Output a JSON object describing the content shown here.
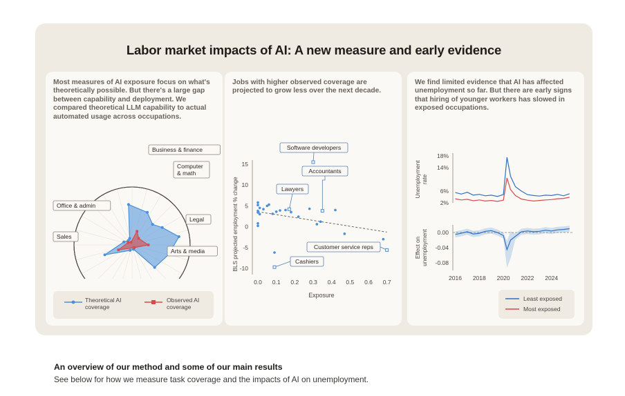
{
  "main_title": "Labor market impacts of AI: A new measure and early evidence",
  "panels": {
    "radar": {
      "description": "Most measures of AI exposure focus on what's theoretically possible. But there's a large gap between capability and deployment. We compared theoretical LLM capability to actual automated usage across occupations."
    },
    "scatter": {
      "description": "Jobs with higher observed coverage are projected to grow less over the next decade."
    },
    "unemployment": {
      "description": "We find limited evidence that AI has affected unemployment so far. But there are early signs that hiring of younger workers has slowed in exposed occupations."
    }
  },
  "footer": {
    "title": "An overview of our method and some of our main results",
    "subtitle": "See below for how we measure task coverage and the impacts of AI on unemployment."
  },
  "colors": {
    "blue": "#4a8fd8",
    "red": "#d94a4a",
    "panel_bg": "#fbf9f5",
    "outer_bg": "#efebe3"
  },
  "chart_data": [
    {
      "type": "radar",
      "r_ticks": [
        0.6,
        1.0
      ],
      "category_labels": [
        "Business & finance",
        "Computer & math",
        "Legal",
        "Arts & media",
        "Sales",
        "Office & admin"
      ],
      "series": [
        {
          "name": "Theoretical AI coverage",
          "color": "#4a8fd8",
          "points": [
            {
              "angle": -5,
              "r": 0.7
            },
            {
              "angle": 25,
              "r": 0.62
            },
            {
              "angle": 45,
              "r": 0.5
            },
            {
              "angle": 60,
              "r": 0.6
            },
            {
              "angle": 80,
              "r": 0.82
            },
            {
              "angle": 105,
              "r": 0.65
            },
            {
              "angle": 135,
              "r": 0.55
            },
            {
              "angle": 160,
              "r": 0.08
            },
            {
              "angle": 200,
              "r": 0.1
            },
            {
              "angle": 250,
              "r": 0.5
            },
            {
              "angle": 290,
              "r": 0.15
            },
            {
              "angle": 320,
              "r": 0.1
            },
            {
              "angle": 340,
              "r": 0.12
            }
          ]
        },
        {
          "name": "Observed AI coverage",
          "color": "#d94a4a",
          "points": [
            {
              "angle": 20,
              "r": 0.25
            },
            {
              "angle": 45,
              "r": 0.16
            },
            {
              "angle": 90,
              "r": 0.28
            },
            {
              "angle": 140,
              "r": 0.06
            },
            {
              "angle": 250,
              "r": 0.25
            },
            {
              "angle": 300,
              "r": 0.08
            },
            {
              "angle": 340,
              "r": 0.05
            }
          ]
        }
      ]
    },
    {
      "type": "scatter",
      "xlabel": "Exposure",
      "ylabel": "BLS projected employment % change",
      "x_ticks": [
        0.0,
        0.1,
        0.2,
        0.3,
        0.4,
        0.5,
        0.6,
        0.7
      ],
      "y_ticks": [
        15,
        10,
        5,
        0,
        -5,
        -10
      ],
      "xlim": [
        -0.03,
        0.72
      ],
      "ylim": [
        -11.5,
        16
      ],
      "points": [
        [
          0.0,
          5.8
        ],
        [
          0.0,
          5.2
        ],
        [
          0.01,
          4.5
        ],
        [
          0.0,
          3.8
        ],
        [
          0.0,
          3.4
        ],
        [
          0.01,
          3.0
        ],
        [
          0.0,
          0.8
        ],
        [
          0.0,
          0.2
        ],
        [
          0.03,
          4.2
        ],
        [
          0.05,
          5.0
        ],
        [
          0.06,
          5.3
        ],
        [
          0.08,
          3.1
        ],
        [
          0.1,
          3.6
        ],
        [
          0.12,
          3.9
        ],
        [
          0.15,
          4.0
        ],
        [
          0.18,
          3.5
        ],
        [
          0.22,
          2.4
        ],
        [
          0.28,
          4.3
        ],
        [
          0.32,
          0.6
        ],
        [
          0.34,
          1.2
        ],
        [
          0.42,
          4.0
        ],
        [
          0.47,
          -1.7
        ],
        [
          0.09,
          -6.2
        ],
        [
          0.68,
          -3.0
        ]
      ],
      "trend": [
        [
          0.0,
          3.6
        ],
        [
          0.7,
          -1.3
        ]
      ],
      "annotations": [
        {
          "label": "Software developers",
          "x": 0.3,
          "y": 15.5
        },
        {
          "label": "Accountants",
          "x": 0.35,
          "y": 3.8
        },
        {
          "label": "Lawyers",
          "x": 0.17,
          "y": 4.2
        },
        {
          "label": "Customer service reps",
          "x": 0.7,
          "y": -5.6
        },
        {
          "label": "Cashiers",
          "x": 0.09,
          "y": -9.7
        }
      ]
    },
    {
      "type": "line",
      "ylabel_top": "Unemployment rate",
      "ylabel_bottom": "Effect on unemployment",
      "x_ticks": [
        2016,
        2018,
        2020,
        2022,
        2024
      ],
      "xlim": [
        2015.8,
        2025.8
      ],
      "top_y_ticks": [
        "18%",
        "14%",
        "6%",
        "2%"
      ],
      "top_ylim": [
        2,
        18
      ],
      "bottom_y_ticks": [
        "0.00",
        "-0.04",
        "-0.08"
      ],
      "bottom_ylim": [
        -0.1,
        0.02
      ],
      "series_top": [
        {
          "name": "Least exposed",
          "color": "#2f6fc0",
          "values": [
            [
              2016,
              5.5
            ],
            [
              2016.5,
              5.0
            ],
            [
              2017,
              5.6
            ],
            [
              2017.5,
              4.6
            ],
            [
              2018,
              4.9
            ],
            [
              2018.5,
              4.4
            ],
            [
              2019,
              4.6
            ],
            [
              2019.5,
              4.2
            ],
            [
              2020,
              4.8
            ],
            [
              2020.3,
              17.5
            ],
            [
              2020.6,
              11.0
            ],
            [
              2021,
              7.5
            ],
            [
              2021.5,
              6.0
            ],
            [
              2022,
              4.8
            ],
            [
              2022.5,
              4.5
            ],
            [
              2023,
              4.3
            ],
            [
              2023.5,
              4.6
            ],
            [
              2024,
              4.5
            ],
            [
              2024.5,
              4.9
            ],
            [
              2025,
              4.4
            ],
            [
              2025.5,
              5.1
            ]
          ]
        },
        {
          "name": "Most exposed",
          "color": "#d94a4a",
          "values": [
            [
              2016,
              3.4
            ],
            [
              2016.5,
              3.0
            ],
            [
              2017,
              3.2
            ],
            [
              2017.5,
              2.7
            ],
            [
              2018,
              3.0
            ],
            [
              2018.5,
              2.6
            ],
            [
              2019,
              2.8
            ],
            [
              2019.5,
              2.5
            ],
            [
              2020,
              2.9
            ],
            [
              2020.3,
              10.5
            ],
            [
              2020.6,
              6.5
            ],
            [
              2021,
              4.5
            ],
            [
              2021.5,
              3.3
            ],
            [
              2022,
              2.9
            ],
            [
              2022.5,
              2.6
            ],
            [
              2023,
              2.8
            ],
            [
              2023.5,
              3.0
            ],
            [
              2024,
              3.1
            ],
            [
              2024.5,
              3.4
            ],
            [
              2025,
              3.5
            ],
            [
              2025.5,
              3.9
            ]
          ]
        }
      ],
      "series_bottom": {
        "color": "#2f6fc0",
        "values": [
          [
            2016,
            -0.005
          ],
          [
            2016.5,
            -0.002
          ],
          [
            2017,
            0.002
          ],
          [
            2017.5,
            -0.004
          ],
          [
            2018,
            -0.002
          ],
          [
            2018.5,
            0.003
          ],
          [
            2019,
            0.005
          ],
          [
            2019.5,
            0.0
          ],
          [
            2020,
            -0.008
          ],
          [
            2020.3,
            -0.045
          ],
          [
            2020.6,
            -0.02
          ],
          [
            2021,
            -0.01
          ],
          [
            2021.5,
            0.002
          ],
          [
            2022,
            0.004
          ],
          [
            2022.5,
            0.002
          ],
          [
            2023,
            0.003
          ],
          [
            2023.5,
            0.006
          ],
          [
            2024,
            0.004
          ],
          [
            2024.5,
            0.007
          ],
          [
            2025,
            0.008
          ],
          [
            2025.5,
            0.01
          ]
        ],
        "band": 0.008
      },
      "legend": [
        "Least exposed",
        "Most exposed"
      ]
    }
  ]
}
